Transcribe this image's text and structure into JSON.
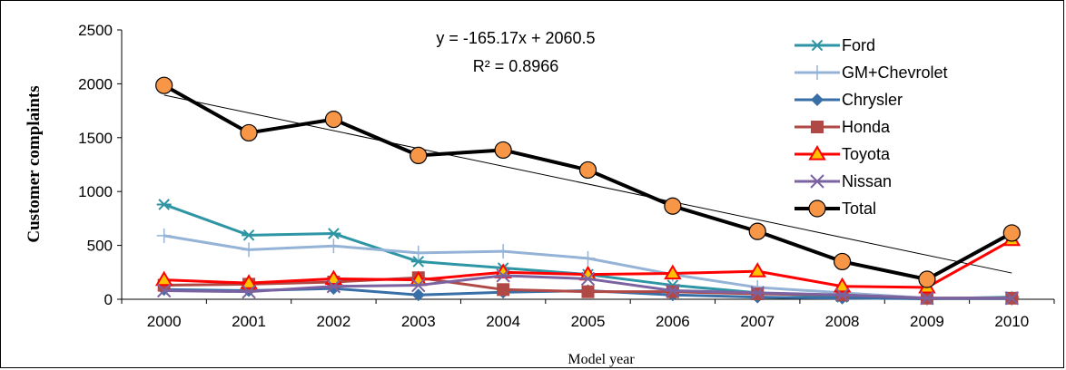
{
  "chart_data": {
    "type": "line",
    "xlabel": "Model year",
    "ylabel": "Customer complaints",
    "ylim": [
      0,
      2500
    ],
    "yticks": [
      0,
      500,
      1000,
      1500,
      2000,
      2500
    ],
    "categories": [
      "2000",
      "2001",
      "2002",
      "2003",
      "2004",
      "2005",
      "2006",
      "2007",
      "2008",
      "2009",
      "2010"
    ],
    "legend_position": "top-right",
    "grid": false,
    "series": [
      {
        "name": "Ford",
        "color": "#2E95A5",
        "marker": "asterisk",
        "values": [
          880,
          595,
          610,
          350,
          290,
          230,
          130,
          60,
          20,
          5,
          20
        ]
      },
      {
        "name": "GM+Chevrolet",
        "color": "#95B3D7",
        "marker": "plus",
        "values": [
          590,
          460,
          495,
          430,
          445,
          380,
          230,
          110,
          60,
          10,
          10
        ]
      },
      {
        "name": "Chrysler",
        "color": "#376FA6",
        "marker": "diamond",
        "values": [
          90,
          80,
          100,
          40,
          65,
          80,
          40,
          20,
          10,
          5,
          5
        ]
      },
      {
        "name": "Honda",
        "color": "#B04845",
        "marker": "square",
        "values": [
          130,
          140,
          160,
          200,
          90,
          70,
          70,
          50,
          40,
          10,
          10
        ]
      },
      {
        "name": "Toyota",
        "color": "#FF0000",
        "marker": "triangle",
        "values": [
          180,
          150,
          190,
          180,
          250,
          230,
          240,
          260,
          120,
          110,
          550
        ]
      },
      {
        "name": "Nissan",
        "color": "#7B62A0",
        "marker": "x",
        "values": [
          80,
          70,
          120,
          130,
          220,
          190,
          80,
          60,
          40,
          10,
          10
        ]
      },
      {
        "name": "Total",
        "color": "#000000",
        "marker": "circle",
        "values": [
          1985,
          1545,
          1670,
          1335,
          1385,
          1200,
          865,
          630,
          350,
          185,
          615
        ]
      }
    ],
    "trendline": {
      "series": "Total",
      "equation": "y = -165.17x + 2060.5",
      "r_squared": "R² = 0.8966"
    }
  }
}
